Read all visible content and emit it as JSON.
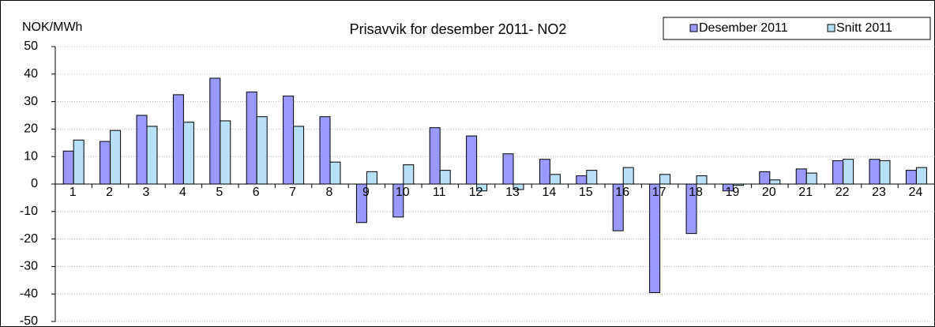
{
  "chart_data": {
    "type": "bar",
    "title": "Prisavvik for desember 2011- NO2",
    "y_label": "NOK/MWh",
    "categories": [
      "1",
      "2",
      "3",
      "4",
      "5",
      "6",
      "7",
      "8",
      "9",
      "10",
      "11",
      "12",
      "13",
      "14",
      "15",
      "16",
      "17",
      "18",
      "19",
      "20",
      "21",
      "22",
      "23",
      "24"
    ],
    "series": [
      {
        "name": "Desember 2011",
        "color": "#9999ff",
        "values": [
          12,
          15.5,
          25,
          32.5,
          38.5,
          33.5,
          32,
          24.5,
          -14,
          -12,
          20.5,
          17.5,
          11,
          9,
          3,
          -17,
          -39.5,
          -18,
          -2.5,
          4.5,
          5.5,
          8.5,
          9,
          5
        ]
      },
      {
        "name": "Snitt 2011",
        "color": "#b7dff5",
        "values": [
          16,
          19.5,
          21,
          22.5,
          23,
          24.5,
          21,
          8,
          4.5,
          7,
          5,
          -2.5,
          -2,
          3.5,
          5,
          6,
          3.5,
          3,
          -0.5,
          1.5,
          4,
          9,
          8.5,
          6
        ]
      }
    ],
    "ylim": [
      -50,
      50
    ],
    "yticks": [
      -50,
      -40,
      -30,
      -20,
      -10,
      0,
      10,
      20,
      30,
      40,
      50
    ],
    "grid": true,
    "legend": "top-right"
  }
}
